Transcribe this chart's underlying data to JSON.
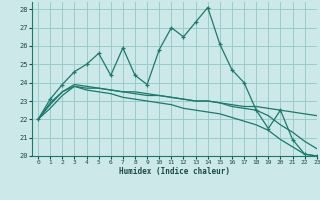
{
  "xlabel": "Humidex (Indice chaleur)",
  "xlim": [
    -0.5,
    23
  ],
  "ylim": [
    20,
    28.4
  ],
  "yticks": [
    20,
    21,
    22,
    23,
    24,
    25,
    26,
    27,
    28
  ],
  "xticks": [
    0,
    1,
    2,
    3,
    4,
    5,
    6,
    7,
    8,
    9,
    10,
    11,
    12,
    13,
    14,
    15,
    16,
    17,
    18,
    19,
    20,
    21,
    22,
    23
  ],
  "bg_color": "#cce8e8",
  "grid_color": "#99cccc",
  "line_color": "#1a7a6e",
  "lines": [
    {
      "x": [
        0,
        1,
        2,
        3,
        4,
        5,
        6,
        7,
        8,
        9,
        10,
        11,
        12,
        13,
        14,
        15,
        16,
        17,
        18,
        19,
        20,
        21,
        22,
        23
      ],
      "y": [
        22.0,
        23.1,
        23.9,
        24.6,
        25.0,
        25.6,
        24.4,
        25.9,
        24.4,
        23.9,
        25.8,
        27.0,
        26.5,
        27.3,
        28.1,
        26.1,
        24.7,
        24.0,
        22.5,
        21.5,
        22.5,
        20.9,
        20.1,
        20.0
      ],
      "marker": "+"
    },
    {
      "x": [
        0,
        1,
        2,
        3,
        4,
        5,
        6,
        7,
        8,
        9,
        10,
        11,
        12,
        13,
        14,
        15,
        16,
        17,
        18,
        19,
        20,
        21,
        22,
        23
      ],
      "y": [
        22.0,
        22.8,
        23.5,
        23.8,
        23.7,
        23.7,
        23.6,
        23.5,
        23.4,
        23.3,
        23.3,
        23.2,
        23.1,
        23.0,
        23.0,
        22.9,
        22.8,
        22.7,
        22.7,
        22.6,
        22.5,
        22.4,
        22.3,
        22.2
      ],
      "marker": null
    },
    {
      "x": [
        0,
        1,
        2,
        3,
        4,
        5,
        6,
        7,
        8,
        9,
        10,
        11,
        12,
        13,
        14,
        15,
        16,
        17,
        18,
        19,
        20,
        21,
        22,
        23
      ],
      "y": [
        22.0,
        22.9,
        23.5,
        23.9,
        23.8,
        23.7,
        23.6,
        23.5,
        23.5,
        23.4,
        23.3,
        23.2,
        23.1,
        23.0,
        23.0,
        22.9,
        22.7,
        22.6,
        22.5,
        22.2,
        21.7,
        21.3,
        20.8,
        20.4
      ],
      "marker": null
    },
    {
      "x": [
        0,
        1,
        2,
        3,
        4,
        5,
        6,
        7,
        8,
        9,
        10,
        11,
        12,
        13,
        14,
        15,
        16,
        17,
        18,
        19,
        20,
        21,
        22,
        23
      ],
      "y": [
        22.0,
        22.6,
        23.3,
        23.8,
        23.6,
        23.5,
        23.4,
        23.2,
        23.1,
        23.0,
        22.9,
        22.8,
        22.6,
        22.5,
        22.4,
        22.3,
        22.1,
        21.9,
        21.7,
        21.4,
        20.9,
        20.5,
        20.1,
        20.0
      ],
      "marker": null
    }
  ]
}
